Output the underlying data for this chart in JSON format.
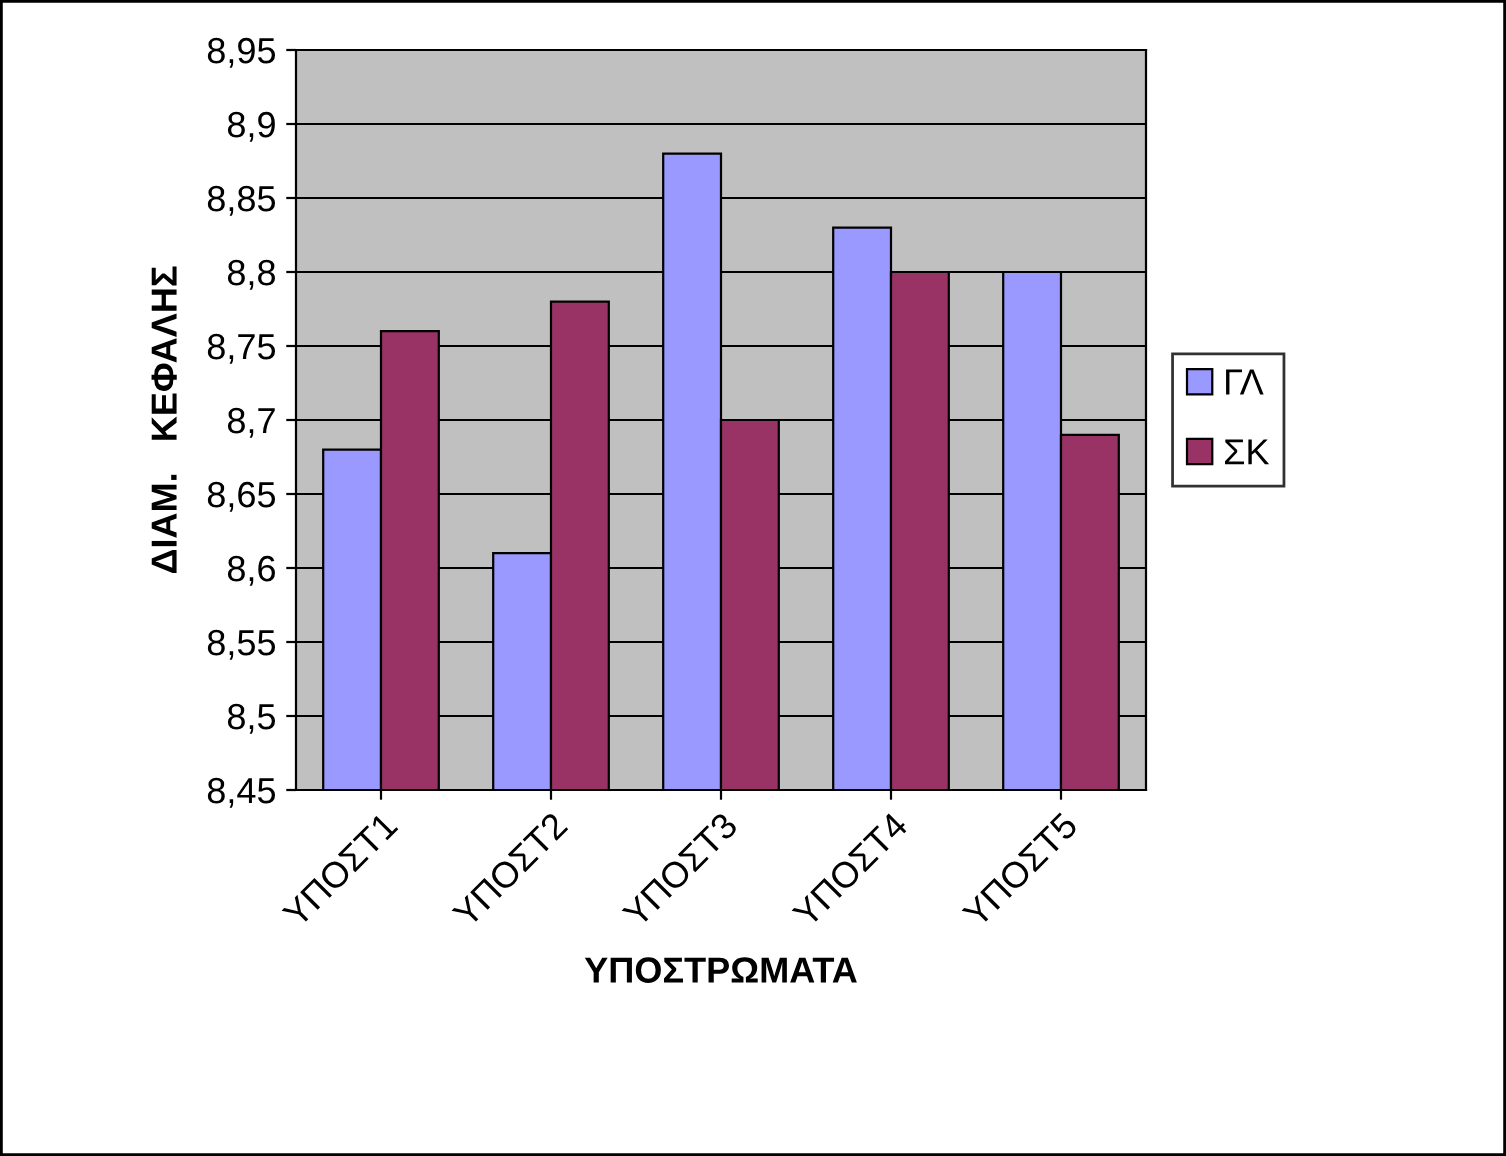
{
  "chart_data": {
    "type": "bar",
    "xlabel": "ΥΠΟΣΤΡΩΜΑΤΑ",
    "ylabel": "ΔΙΑΜ.   ΚΕΦΑΛΗΣ",
    "categories": [
      "ΥΠΟΣΤ1",
      "ΥΠΟΣΤ2",
      "ΥΠΟΣΤ3",
      "ΥΠΟΣΤ4",
      "ΥΠΟΣΤ5"
    ],
    "series": [
      {
        "name": "ΓΛ",
        "color": "#9999ff",
        "values": [
          8.68,
          8.61,
          8.88,
          8.83,
          8.8
        ]
      },
      {
        "name": "ΣΚ",
        "color": "#993366",
        "values": [
          8.76,
          8.78,
          8.7,
          8.8,
          8.69
        ]
      }
    ],
    "ylim": [
      8.45,
      8.95
    ],
    "yticks": [
      {
        "value": 8.45,
        "label": "8,45"
      },
      {
        "value": 8.5,
        "label": "8,5"
      },
      {
        "value": 8.55,
        "label": "8,55"
      },
      {
        "value": 8.6,
        "label": "8,6"
      },
      {
        "value": 8.65,
        "label": "8,65"
      },
      {
        "value": 8.7,
        "label": "8,7"
      },
      {
        "value": 8.75,
        "label": "8,75"
      },
      {
        "value": 8.8,
        "label": "8,8"
      },
      {
        "value": 8.85,
        "label": "8,85"
      },
      {
        "value": 8.9,
        "label": "8,9"
      },
      {
        "value": 8.95,
        "label": "8,95"
      }
    ],
    "grid": "y",
    "legend": "right"
  }
}
